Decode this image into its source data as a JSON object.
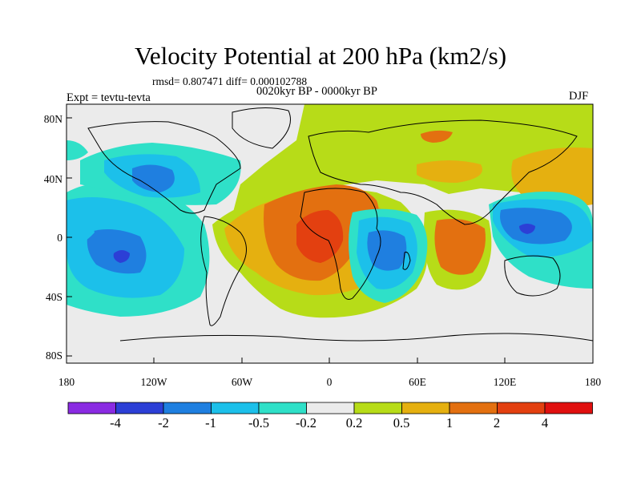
{
  "map": {
    "title": "Velocity Potential at 200 hPa (km2/s)",
    "stats": "rmsd= 0.807471 diff= 0.000102788",
    "period": "0020kyr BP - 0000kyr BP",
    "experiment": "Expt = tevtu-tevta",
    "season": "DJF",
    "lat_ticks": [
      "80N",
      "40N",
      "0",
      "40S",
      "80S"
    ],
    "lon_ticks": [
      "180",
      "120W",
      "60W",
      "0",
      "60E",
      "120E",
      "180"
    ]
  },
  "colorbar": {
    "labels": [
      "-4",
      "-2",
      "-1",
      "-0.5",
      "-0.2",
      "0.2",
      "0.5",
      "1",
      "2",
      "4"
    ],
    "colors": [
      "#8a2be2",
      "#2c3fd6",
      "#1f7fe0",
      "#1cc0ea",
      "#2fe0c8",
      "#ebebeb",
      "#b7dc18",
      "#e5b010",
      "#e37010",
      "#e34010",
      "#e0100f"
    ]
  },
  "palette": {
    "c_neg4": "#2c3fd6",
    "c_neg2": "#1f7fe0",
    "c_neg1": "#1cc0ea",
    "c_neg05": "#2fe0c8",
    "c_zero": "#ebebeb",
    "c_pos02": "#b7dc18",
    "c_pos05": "#e5b010",
    "c_pos1": "#e37010",
    "c_pos2": "#e34010",
    "c_pos4": "#e0100f"
  }
}
